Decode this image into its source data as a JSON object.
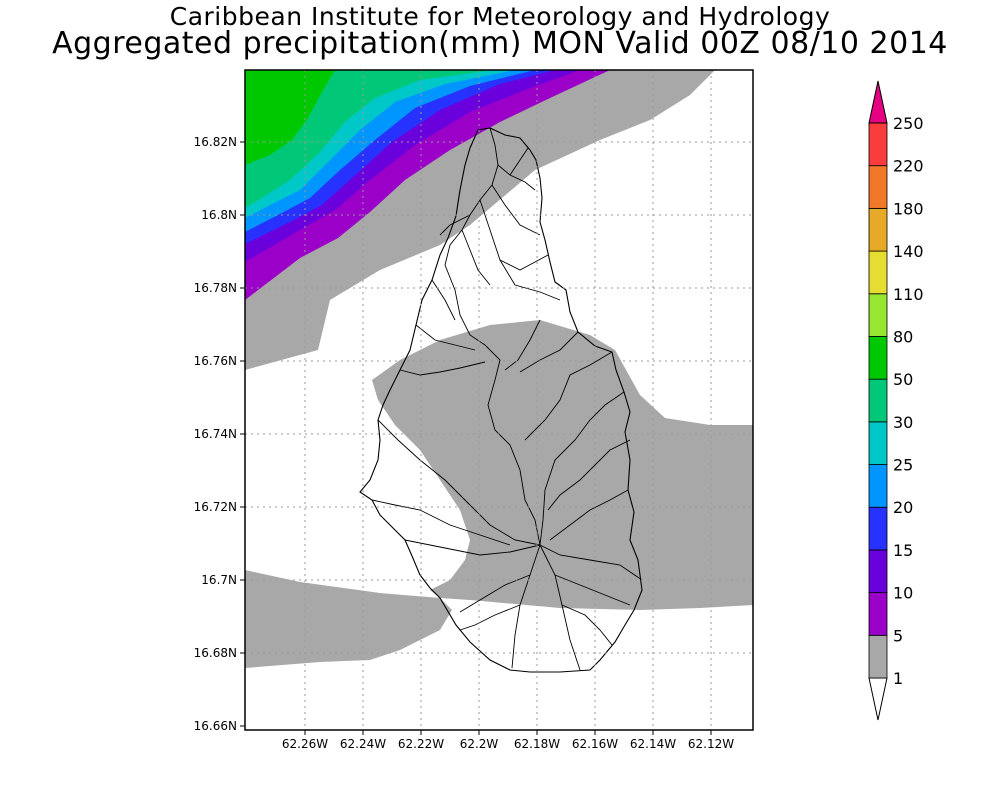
{
  "title_line1": "Caribbean Institute for Meteorology and Hydrology",
  "title_line2": "Aggregated precipitation(mm) MON Valid 00Z 08/10 2014",
  "map": {
    "lat_ticks": [
      "16.82N",
      "16.8N",
      "16.78N",
      "16.76N",
      "16.74N",
      "16.72N",
      "16.7N",
      "16.68N",
      "16.66N"
    ],
    "lon_ticks": [
      "62.26W",
      "62.24W",
      "62.22W",
      "62.2W",
      "62.18W",
      "62.16W",
      "62.14W",
      "62.12W"
    ],
    "lat_range": [
      16.66,
      16.84
    ],
    "lon_range": [
      -62.28,
      -62.105
    ],
    "grid": "dotted"
  },
  "colorbar": {
    "labels": [
      "1",
      "5",
      "10",
      "15",
      "20",
      "25",
      "30",
      "50",
      "80",
      "110",
      "140",
      "180",
      "220",
      "250"
    ],
    "colors": [
      "#ffffff",
      "#a8a8a8",
      "#9a00c8",
      "#6a00dc",
      "#2832ff",
      "#0096ff",
      "#00c8c8",
      "#00c878",
      "#00c800",
      "#96e632",
      "#e6dc32",
      "#e6aa28",
      "#f07828",
      "#fa3c3c",
      "#e60082"
    ]
  }
}
